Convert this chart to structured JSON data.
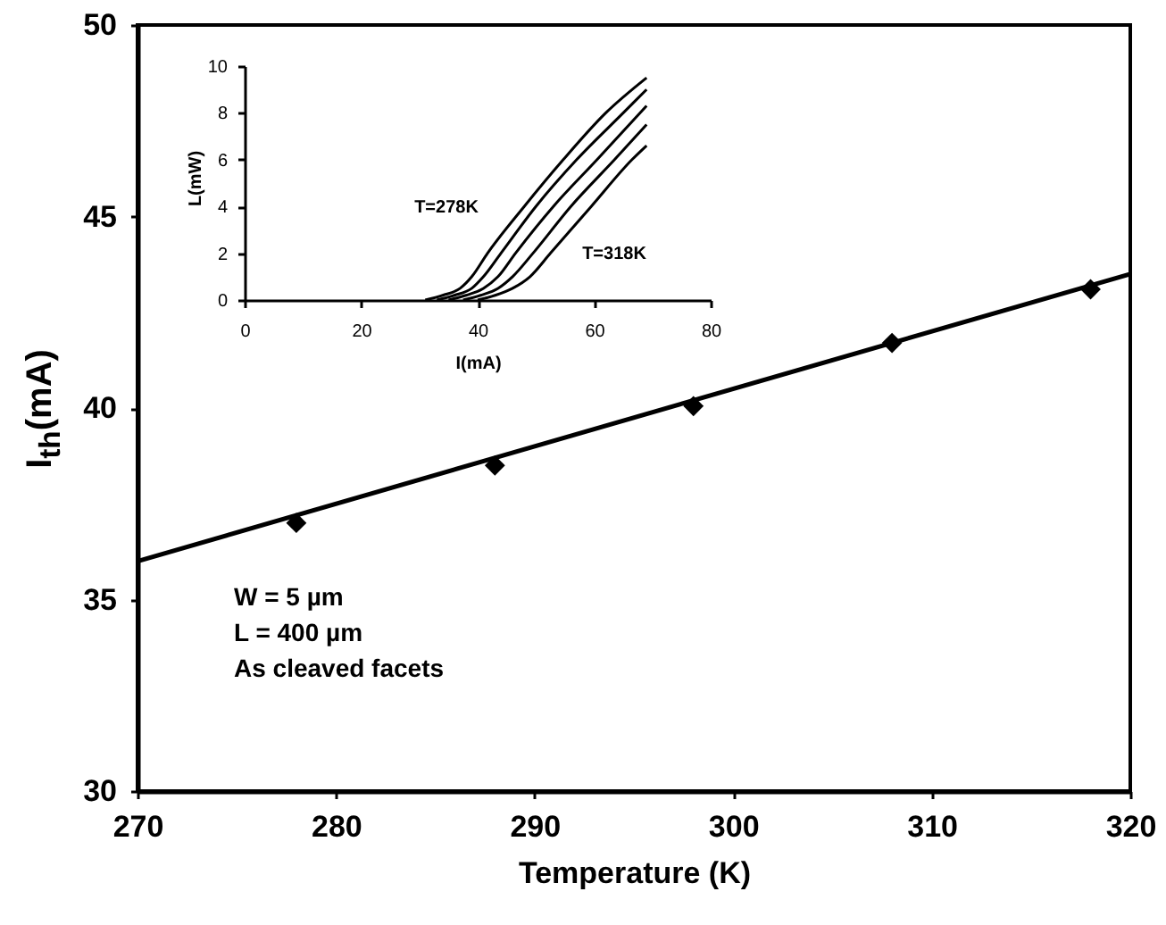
{
  "chart_data": [
    {
      "type": "scatter",
      "xlabel": "Temperature (K)",
      "ylabel": "I$_{th}$(mA)",
      "xlim": [
        270,
        320
      ],
      "ylim": [
        30,
        50
      ],
      "xticks": [
        270,
        280,
        290,
        300,
        310,
        320
      ],
      "yticks": [
        30,
        35,
        40,
        45,
        50
      ],
      "grid": false,
      "annotations": [
        "W = 5 µm",
        "L = 400 µm",
        "As cleaved facets"
      ],
      "series": [
        {
          "color": "#000000",
          "marker": "diamond",
          "x": [
            278,
            288,
            298,
            308,
            318
          ],
          "values": [
            37.0,
            38.5,
            40.05,
            41.7,
            43.1
          ]
        },
        {
          "type": "line",
          "color": "#000000",
          "x": [
            270,
            320
          ],
          "values": [
            36.0,
            43.5
          ]
        }
      ]
    },
    {
      "type": "line",
      "xlabel": "I(mA)",
      "ylabel": "L(mW)",
      "xlim": [
        0,
        80
      ],
      "ylim": [
        0,
        10
      ],
      "xticks": [
        0,
        20,
        40,
        60,
        80
      ],
      "yticks": [
        0,
        2,
        4,
        6,
        8,
        10
      ],
      "grid": false,
      "annotations": [
        "T=278K",
        "T=318K"
      ],
      "series": [
        {
          "color": "#000000",
          "x": [
            31,
            34,
            37,
            39,
            41.7,
            48,
            54.7,
            62,
            69
          ],
          "values": [
            0,
            0.2,
            0.5,
            1.0,
            2,
            4,
            6,
            8,
            9.5
          ]
        },
        {
          "color": "#000000",
          "x": [
            33,
            36,
            39,
            41,
            44,
            50,
            57,
            65,
            69
          ],
          "values": [
            0,
            0.2,
            0.5,
            1.0,
            2,
            4,
            6,
            8,
            9.0
          ]
        },
        {
          "color": "#000000",
          "x": [
            35,
            38,
            41,
            43.5,
            46.5,
            53,
            60.5,
            69
          ],
          "values": [
            0,
            0.2,
            0.5,
            1,
            2,
            4,
            6,
            8.3
          ]
        },
        {
          "color": "#000000",
          "x": [
            37.5,
            40.5,
            43.5,
            46,
            49.5,
            56,
            63.5,
            69
          ],
          "values": [
            0,
            0.2,
            0.5,
            1,
            2,
            4,
            6,
            7.5
          ]
        },
        {
          "color": "#000000",
          "x": [
            40,
            43,
            46,
            49,
            52.5,
            59.5,
            66.5,
            69
          ],
          "values": [
            0,
            0.2,
            0.5,
            1,
            2,
            4,
            6,
            6.6
          ]
        }
      ]
    }
  ]
}
